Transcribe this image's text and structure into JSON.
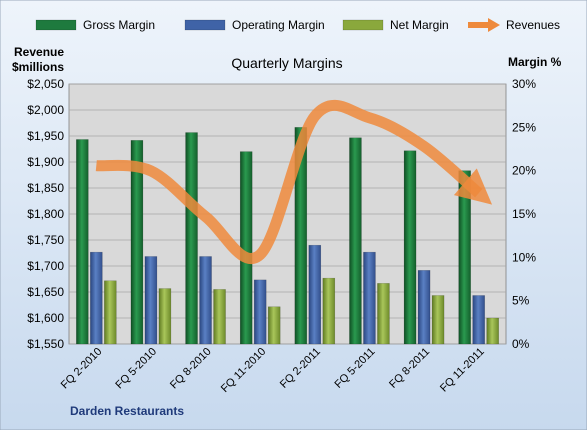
{
  "chart_data": {
    "type": "bar",
    "title": "Quarterly Margins",
    "left_axis_title_line1": "Revenue",
    "left_axis_title_line2": "$millions",
    "right_axis_title": "Margin %",
    "footer": "Darden Restaurants",
    "categories": [
      "FQ 2-2010",
      "FQ 5-2010",
      "FQ 8-2010",
      "FQ 11-2010",
      "FQ 2-2011",
      "FQ 5-2011",
      "FQ 8-2011",
      "FQ 11-2011"
    ],
    "y_left": {
      "range": [
        1550,
        2050
      ],
      "ticks": [
        "$1,550",
        "$1,600",
        "$1,650",
        "$1,700",
        "$1,750",
        "$1,800",
        "$1,850",
        "$1,900",
        "$1,950",
        "$2,000",
        "$2,050"
      ]
    },
    "y_right": {
      "range": [
        0,
        30
      ],
      "ticks": [
        "0%",
        "5%",
        "10%",
        "15%",
        "20%",
        "25%",
        "30%"
      ]
    },
    "legend": {
      "position": "top",
      "items": [
        {
          "label": "Gross Margin",
          "color": "#1e7a3e"
        },
        {
          "label": "Operating Margin",
          "color": "#3f63a7"
        },
        {
          "label": "Net Margin",
          "color": "#8aa83c"
        },
        {
          "label": "Revenues",
          "color": "#ee8a3c"
        }
      ]
    },
    "series": [
      {
        "name": "Gross Margin",
        "axis": "right",
        "color": "#1e7a3e",
        "values": [
          23.6,
          23.5,
          24.4,
          22.2,
          25.0,
          23.8,
          22.3,
          20.0
        ]
      },
      {
        "name": "Operating Margin",
        "axis": "right",
        "color": "#3f63a7",
        "values": [
          10.6,
          10.1,
          10.1,
          7.4,
          11.4,
          10.6,
          8.5,
          5.6
        ]
      },
      {
        "name": "Net Margin",
        "axis": "right",
        "color": "#8aa83c",
        "values": [
          7.3,
          6.4,
          6.3,
          4.3,
          7.6,
          7.0,
          5.6,
          3.0
        ]
      },
      {
        "name": "Revenues",
        "axis": "left",
        "type": "line",
        "color": "#ee8a3c",
        "values": [
          1893,
          1883,
          1795,
          1722,
          1988,
          1985,
          1930,
          1840
        ]
      }
    ],
    "grid": true,
    "plot_background": "#d9d9d9"
  }
}
